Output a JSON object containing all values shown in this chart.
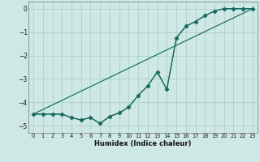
{
  "xlabel": "Humidex (Indice chaleur)",
  "background_color": "#cde8e5",
  "grid_color": "#b0ceca",
  "line_color": "#1a6b60",
  "xlim": [
    -0.5,
    23.5
  ],
  "ylim": [
    -5.3,
    0.3
  ],
  "yticks": [
    0,
    -1,
    -2,
    -3,
    -4,
    -5
  ],
  "xticks": [
    0,
    1,
    2,
    3,
    4,
    5,
    6,
    7,
    8,
    9,
    10,
    11,
    12,
    13,
    14,
    15,
    16,
    17,
    18,
    19,
    20,
    21,
    22,
    23
  ],
  "line1_x": [
    0,
    1,
    2,
    3,
    4,
    5,
    6,
    7,
    8,
    9,
    10,
    11,
    12,
    13,
    14,
    15,
    16,
    17,
    18,
    19,
    20,
    21,
    22,
    23
  ],
  "line1_y": [
    -4.5,
    -4.5,
    -4.5,
    -4.5,
    -4.65,
    -4.75,
    -4.65,
    -4.9,
    -4.6,
    -4.45,
    -4.2,
    -3.7,
    -3.3,
    -2.7,
    -3.45,
    -1.25,
    -0.75,
    -0.55,
    -0.3,
    -0.1,
    0.0,
    0.0,
    0.0,
    0.0
  ],
  "line2_x": [
    0,
    23
  ],
  "line2_y": [
    -4.5,
    0.0
  ],
  "line3_x": [
    0,
    3,
    4,
    5,
    6,
    7,
    8,
    9,
    10,
    11,
    12,
    13,
    14,
    15,
    16,
    17,
    18,
    19,
    20,
    21,
    22,
    23
  ],
  "line3_y": [
    -4.5,
    -4.5,
    -4.65,
    -4.75,
    -4.65,
    -4.9,
    -4.6,
    -4.45,
    -4.2,
    -3.7,
    -3.3,
    -2.7,
    -3.45,
    -1.25,
    -0.75,
    -0.55,
    -0.3,
    -0.1,
    0.0,
    0.0,
    0.0,
    0.0
  ],
  "marker_x": [
    0,
    1,
    2,
    3,
    4,
    5,
    6,
    7,
    8,
    9,
    10,
    11,
    12,
    13,
    14,
    15,
    16,
    17,
    18,
    19,
    20,
    21,
    22,
    23
  ],
  "marker_y": [
    -4.5,
    -4.5,
    -4.5,
    -4.5,
    -4.65,
    -4.75,
    -4.65,
    -4.9,
    -4.6,
    -4.45,
    -4.2,
    -3.7,
    -3.3,
    -2.7,
    -3.45,
    -1.25,
    -0.75,
    -0.55,
    -0.3,
    -0.1,
    0.0,
    0.0,
    0.0,
    0.0
  ]
}
